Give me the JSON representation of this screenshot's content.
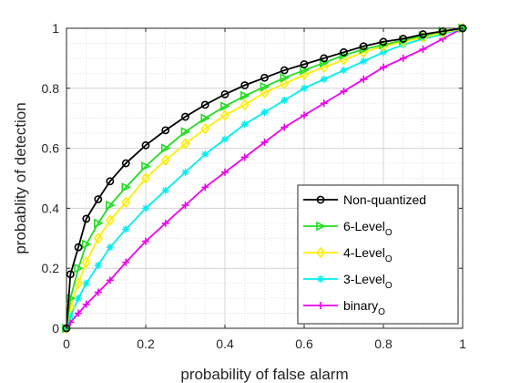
{
  "chart_data": {
    "type": "line",
    "title": "",
    "xlabel": "probability of false alarm",
    "ylabel": "probablity of detection",
    "xlim": [
      0,
      1
    ],
    "ylim": [
      0,
      1
    ],
    "xticks": [
      0,
      0.2,
      0.4,
      0.6,
      0.8,
      1
    ],
    "yticks": [
      0,
      0.2,
      0.4,
      0.6,
      0.8,
      1
    ],
    "xtick_labels": [
      "0",
      "0.2",
      "0.4",
      "0.6",
      "0.8",
      "1"
    ],
    "ytick_labels": [
      "0",
      "0.2",
      "0.4",
      "0.6",
      "0.8",
      "1"
    ],
    "grid": true,
    "minor_grid": true,
    "legend_position": "bottom-right",
    "x": [
      0,
      0.01,
      0.03,
      0.05,
      0.08,
      0.11,
      0.15,
      0.2,
      0.25,
      0.3,
      0.35,
      0.4,
      0.45,
      0.5,
      0.55,
      0.6,
      0.65,
      0.7,
      0.75,
      0.8,
      0.85,
      0.9,
      0.95,
      1.0
    ],
    "series": [
      {
        "name": "Non-quantized",
        "subscript": "",
        "color": "#000000",
        "marker": "circle",
        "values": [
          0.0,
          0.18,
          0.27,
          0.365,
          0.43,
          0.49,
          0.55,
          0.61,
          0.66,
          0.705,
          0.745,
          0.78,
          0.81,
          0.835,
          0.86,
          0.88,
          0.9,
          0.92,
          0.94,
          0.955,
          0.965,
          0.98,
          0.99,
          1.0
        ]
      },
      {
        "name": "6-Level",
        "subscript": "O",
        "color": "#22dd22",
        "marker": "triangle-right",
        "values": [
          0.0,
          0.1,
          0.2,
          0.28,
          0.35,
          0.41,
          0.47,
          0.54,
          0.6,
          0.655,
          0.7,
          0.74,
          0.775,
          0.805,
          0.835,
          0.86,
          0.885,
          0.91,
          0.93,
          0.945,
          0.96,
          0.975,
          0.99,
          1.0
        ]
      },
      {
        "name": "4-Level",
        "subscript": "O",
        "color": "#ffee00",
        "marker": "diamond",
        "values": [
          0.0,
          0.07,
          0.15,
          0.22,
          0.3,
          0.36,
          0.42,
          0.5,
          0.56,
          0.615,
          0.665,
          0.71,
          0.745,
          0.785,
          0.815,
          0.845,
          0.87,
          0.895,
          0.92,
          0.94,
          0.955,
          0.97,
          0.985,
          1.0
        ]
      },
      {
        "name": "3-Level",
        "subscript": "O",
        "color": "#00eeee",
        "marker": "asterisk",
        "values": [
          0.0,
          0.04,
          0.1,
          0.15,
          0.21,
          0.27,
          0.33,
          0.4,
          0.46,
          0.52,
          0.58,
          0.63,
          0.68,
          0.72,
          0.76,
          0.8,
          0.83,
          0.86,
          0.89,
          0.92,
          0.945,
          0.965,
          0.98,
          1.0
        ]
      },
      {
        "name": "binary",
        "subscript": "O",
        "color": "#ee00ee",
        "marker": "plus",
        "values": [
          0.0,
          0.02,
          0.05,
          0.08,
          0.12,
          0.16,
          0.22,
          0.29,
          0.35,
          0.41,
          0.47,
          0.52,
          0.57,
          0.62,
          0.67,
          0.71,
          0.75,
          0.79,
          0.83,
          0.87,
          0.9,
          0.93,
          0.965,
          1.0
        ]
      }
    ]
  }
}
